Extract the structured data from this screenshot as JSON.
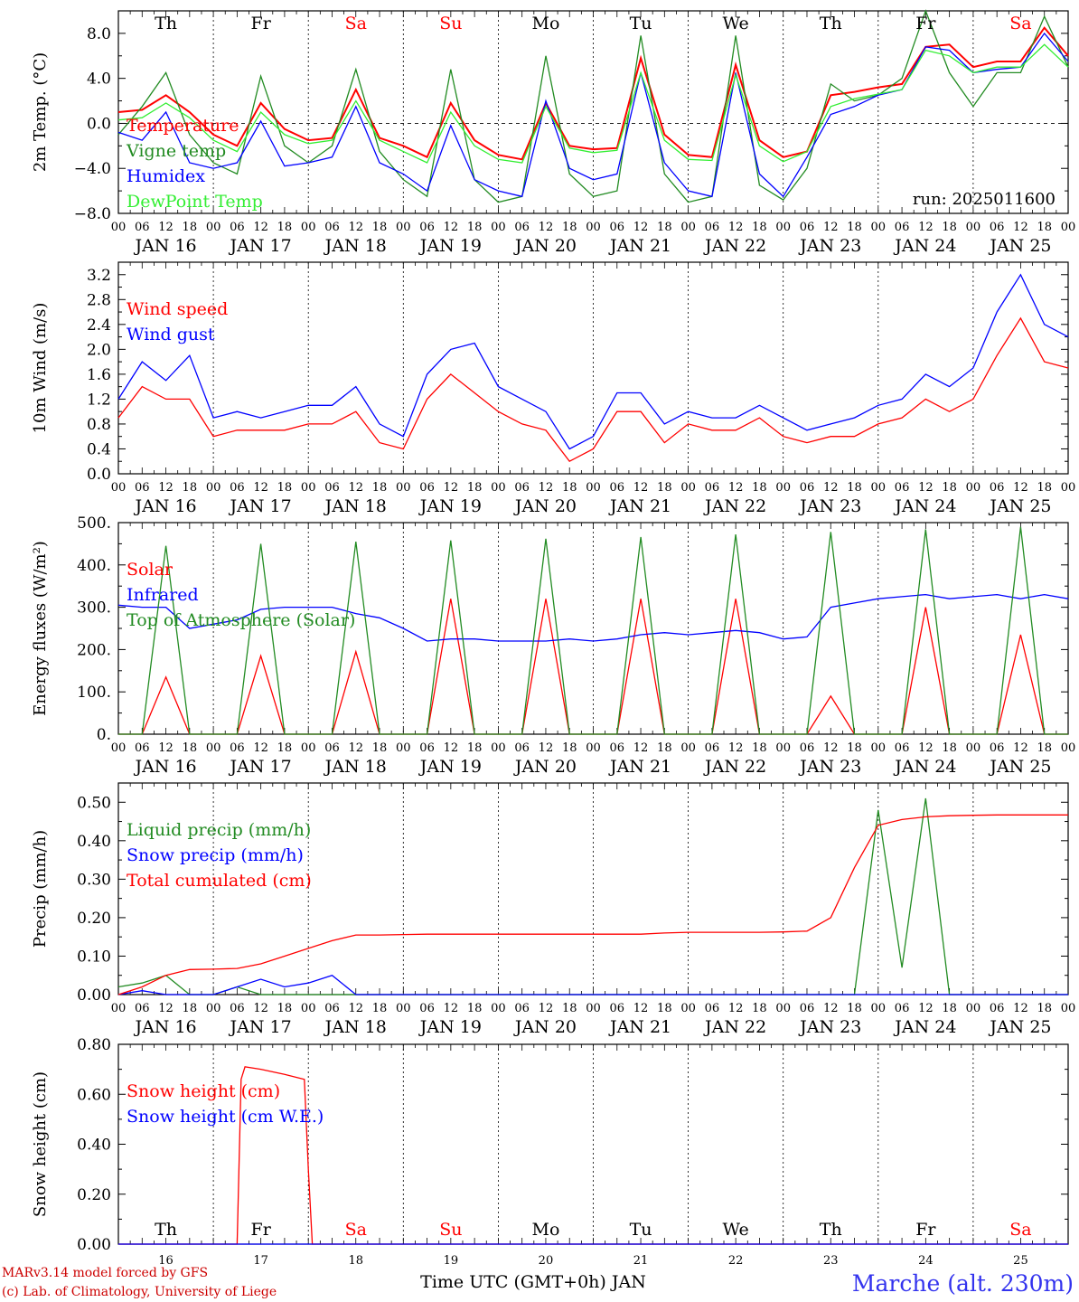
{
  "chart_data": [
    {
      "type": "line",
      "ylabel": "2m Temp. (°C)",
      "ylim": [
        -8,
        10
      ],
      "yticks": [
        -8,
        -4,
        0,
        4,
        8
      ],
      "yticklabels": [
        "−8.0",
        "−4.0",
        "0.0",
        "4.0",
        "8.0"
      ],
      "zero_line": true,
      "run_label": "run: 2025011600",
      "day_names": [
        "Th",
        "Fr",
        "Sa",
        "Su",
        "Mo",
        "Tu",
        "We",
        "Th",
        "Fr",
        "Sa"
      ],
      "weekend": [
        false,
        false,
        true,
        true,
        false,
        false,
        false,
        false,
        false,
        true
      ],
      "x_hours": [
        0,
        6,
        12,
        18,
        24,
        30,
        36,
        42,
        48,
        54,
        60,
        66,
        72,
        78,
        84,
        90,
        96,
        102,
        108,
        114,
        120,
        126,
        132,
        138,
        144,
        150,
        156,
        162,
        168,
        174,
        180,
        186,
        192,
        198,
        204,
        210,
        216,
        222,
        228,
        234,
        240
      ],
      "series": [
        {
          "name": "Temperature",
          "color": "#ff0000",
          "values": [
            1.0,
            1.2,
            2.5,
            1.0,
            -1.0,
            -2.0,
            1.8,
            -0.5,
            -1.5,
            -1.3,
            3.0,
            -1.3,
            -2.0,
            -3.0,
            1.8,
            -1.5,
            -2.8,
            -3.2,
            1.8,
            -2.0,
            -2.3,
            -2.2,
            5.8,
            -1.0,
            -2.8,
            -3.0,
            5.2,
            -1.5,
            -3.0,
            -2.5,
            2.5,
            2.8,
            3.2,
            3.5,
            6.8,
            7.0,
            5.0,
            5.5,
            5.5,
            8.5,
            6.0
          ]
        },
        {
          "name": "Vigne temp",
          "color": "#228b22",
          "values": [
            -1.0,
            1.5,
            4.5,
            -1.0,
            -3.5,
            -4.5,
            4.2,
            -2.0,
            -3.5,
            -2.0,
            4.8,
            -2.5,
            -5.0,
            -6.5,
            4.8,
            -5.0,
            -7.0,
            -6.5,
            6.0,
            -4.5,
            -6.5,
            -6.0,
            7.8,
            -4.5,
            -7.0,
            -6.5,
            7.8,
            -5.5,
            -6.8,
            -4.0,
            3.5,
            2.0,
            2.5,
            4.0,
            10.0,
            4.5,
            1.5,
            4.5,
            4.5,
            9.5,
            5.0
          ]
        },
        {
          "name": "Humidex",
          "color": "#0000ff",
          "values": [
            -0.8,
            -1.5,
            1.0,
            -3.5,
            -4.0,
            -3.5,
            0.2,
            -3.8,
            -3.5,
            -3.0,
            1.5,
            -3.5,
            -4.5,
            -6.0,
            -0.2,
            -5.0,
            -6.0,
            -6.5,
            2.0,
            -4.0,
            -5.0,
            -4.5,
            4.5,
            -3.5,
            -6.0,
            -6.5,
            4.5,
            -4.5,
            -6.5,
            -3.0,
            0.8,
            1.5,
            2.5,
            3.0,
            6.8,
            6.5,
            4.5,
            4.8,
            5.0,
            8.0,
            5.5
          ]
        },
        {
          "name": "DewPoint Temp",
          "color": "#33ee33",
          "values": [
            0.3,
            0.5,
            1.8,
            0.5,
            -1.5,
            -2.5,
            1.0,
            -1.0,
            -1.8,
            -1.5,
            2.0,
            -1.5,
            -2.5,
            -3.5,
            1.0,
            -2.0,
            -3.2,
            -3.5,
            1.5,
            -2.2,
            -2.6,
            -2.4,
            4.5,
            -1.5,
            -3.2,
            -3.3,
            4.3,
            -2.0,
            -3.4,
            -2.5,
            1.5,
            2.2,
            2.6,
            3.0,
            6.5,
            6.0,
            4.5,
            5.0,
            5.0,
            7.0,
            5.0
          ]
        }
      ]
    },
    {
      "type": "line",
      "ylabel": "10m Wind (m/s)",
      "ylim": [
        0,
        3.4
      ],
      "yticks": [
        0,
        0.4,
        0.8,
        1.2,
        1.6,
        2.0,
        2.4,
        2.8,
        3.2
      ],
      "yticklabels": [
        "0.0",
        "0.4",
        "0.8",
        "1.2",
        "1.6",
        "2.0",
        "2.4",
        "2.8",
        "3.2"
      ],
      "x_hours": [
        0,
        6,
        12,
        18,
        24,
        30,
        36,
        42,
        48,
        54,
        60,
        66,
        72,
        78,
        84,
        90,
        96,
        102,
        108,
        114,
        120,
        126,
        132,
        138,
        144,
        150,
        156,
        162,
        168,
        174,
        180,
        186,
        192,
        198,
        204,
        210,
        216,
        222,
        228,
        234,
        240
      ],
      "series": [
        {
          "name": "Wind speed",
          "color": "#ff0000",
          "values": [
            0.9,
            1.4,
            1.2,
            1.2,
            0.6,
            0.7,
            0.7,
            0.7,
            0.8,
            0.8,
            1.0,
            0.5,
            0.4,
            1.2,
            1.6,
            1.3,
            1.0,
            0.8,
            0.7,
            0.2,
            0.4,
            1.0,
            1.0,
            0.5,
            0.8,
            0.7,
            0.7,
            0.9,
            0.6,
            0.5,
            0.6,
            0.6,
            0.8,
            0.9,
            1.2,
            1.0,
            1.2,
            1.9,
            2.5,
            1.8,
            1.7
          ]
        },
        {
          "name": "Wind gust",
          "color": "#0000ff",
          "values": [
            1.2,
            1.8,
            1.5,
            1.9,
            0.9,
            1.0,
            0.9,
            1.0,
            1.1,
            1.1,
            1.4,
            0.8,
            0.6,
            1.6,
            2.0,
            2.1,
            1.4,
            1.2,
            1.0,
            0.4,
            0.6,
            1.3,
            1.3,
            0.8,
            1.0,
            0.9,
            0.9,
            1.1,
            0.9,
            0.7,
            0.8,
            0.9,
            1.1,
            1.2,
            1.6,
            1.4,
            1.7,
            2.6,
            3.2,
            2.4,
            2.2
          ]
        }
      ]
    },
    {
      "type": "line",
      "ylabel": "Energy fluxes (W/m²)",
      "ylim": [
        0,
        500
      ],
      "yticks": [
        0,
        100,
        200,
        300,
        400,
        500
      ],
      "yticklabels": [
        "0.",
        "100.",
        "200.",
        "300.",
        "400.",
        "500."
      ],
      "x_hours": [
        0,
        6,
        12,
        18,
        24,
        30,
        36,
        42,
        48,
        54,
        60,
        66,
        72,
        78,
        84,
        90,
        96,
        102,
        108,
        114,
        120,
        126,
        132,
        138,
        144,
        150,
        156,
        162,
        168,
        174,
        180,
        186,
        192,
        198,
        204,
        210,
        216,
        222,
        228,
        234,
        240
      ],
      "series": [
        {
          "name": "Solar",
          "color": "#ff0000",
          "values": [
            0,
            0,
            135,
            0,
            0,
            0,
            185,
            0,
            0,
            0,
            195,
            0,
            0,
            0,
            320,
            0,
            0,
            0,
            320,
            0,
            0,
            0,
            320,
            0,
            0,
            0,
            320,
            0,
            0,
            0,
            90,
            0,
            0,
            0,
            300,
            0,
            0,
            0,
            235,
            0,
            0
          ]
        },
        {
          "name": "Infrared",
          "color": "#0000ff",
          "values": [
            305,
            300,
            300,
            250,
            260,
            270,
            295,
            300,
            300,
            300,
            285,
            275,
            250,
            220,
            225,
            225,
            220,
            220,
            220,
            225,
            220,
            225,
            235,
            240,
            235,
            240,
            245,
            240,
            225,
            230,
            300,
            310,
            320,
            325,
            330,
            320,
            325,
            330,
            320,
            330,
            320
          ]
        },
        {
          "name": "Top of Atmosphere (Solar)",
          "color": "#228b22",
          "values": [
            0,
            0,
            445,
            0,
            0,
            0,
            450,
            0,
            0,
            0,
            455,
            0,
            0,
            0,
            458,
            0,
            0,
            0,
            462,
            0,
            0,
            0,
            466,
            0,
            0,
            0,
            472,
            0,
            0,
            0,
            478,
            0,
            0,
            0,
            484,
            0,
            0,
            0,
            490,
            0,
            0
          ]
        }
      ]
    },
    {
      "type": "line",
      "ylabel": "Precip (mm/h)",
      "ylim": [
        0,
        0.55
      ],
      "yticks": [
        0,
        0.1,
        0.2,
        0.3,
        0.4,
        0.5
      ],
      "yticklabels": [
        "0.00",
        "0.10",
        "0.20",
        "0.30",
        "0.40",
        "0.50"
      ],
      "x_hours": [
        0,
        6,
        12,
        18,
        24,
        30,
        36,
        42,
        48,
        54,
        60,
        66,
        72,
        78,
        84,
        90,
        96,
        102,
        108,
        114,
        120,
        126,
        132,
        138,
        144,
        150,
        156,
        162,
        168,
        174,
        180,
        186,
        192,
        198,
        204,
        210,
        216,
        222,
        228,
        234,
        240
      ],
      "series": [
        {
          "name": "Liquid precip (mm/h)",
          "color": "#228b22",
          "values": [
            0.02,
            0.03,
            0.05,
            0.0,
            0.0,
            0.02,
            0.0,
            0.0,
            0.0,
            0.0,
            0.0,
            0.0,
            0.0,
            0.0,
            0.0,
            0.0,
            0.0,
            0.0,
            0.0,
            0.0,
            0.0,
            0.0,
            0.0,
            0.0,
            0.0,
            0.0,
            0.0,
            0.0,
            0.0,
            0.0,
            0.0,
            0.0,
            0.48,
            0.07,
            0.51,
            0.0,
            0.0,
            0.0,
            0.0,
            0.0,
            0.0
          ]
        },
        {
          "name": "Snow precip (mm/h)",
          "color": "#0000ff",
          "values": [
            0.0,
            0.01,
            0.0,
            0.0,
            0.0,
            0.02,
            0.04,
            0.02,
            0.03,
            0.05,
            0.0,
            0.0,
            0.0,
            0.0,
            0.0,
            0.0,
            0.0,
            0.0,
            0.0,
            0.0,
            0.0,
            0.0,
            0.0,
            0.0,
            0.0,
            0.0,
            0.0,
            0.0,
            0.0,
            0.0,
            0.0,
            0.0,
            0.0,
            0.0,
            0.0,
            0.0,
            0.0,
            0.0,
            0.0,
            0.0,
            0.0
          ]
        },
        {
          "name": "Total cumulated (cm)",
          "color": "#ff0000",
          "values": [
            0.0,
            0.02,
            0.05,
            0.065,
            0.066,
            0.068,
            0.08,
            0.1,
            0.12,
            0.14,
            0.155,
            0.155,
            0.156,
            0.157,
            0.157,
            0.157,
            0.157,
            0.157,
            0.157,
            0.157,
            0.157,
            0.157,
            0.157,
            0.16,
            0.162,
            0.162,
            0.162,
            0.162,
            0.163,
            0.165,
            0.2,
            0.33,
            0.44,
            0.455,
            0.462,
            0.465,
            0.466,
            0.467,
            0.467,
            0.467,
            0.467
          ]
        }
      ]
    },
    {
      "type": "line",
      "ylabel": "Snow height (cm)",
      "ylim": [
        0,
        0.8
      ],
      "yticks": [
        0,
        0.2,
        0.4,
        0.6,
        0.8
      ],
      "yticklabels": [
        "0.00",
        "0.20",
        "0.40",
        "0.60",
        "0.80"
      ],
      "day_numbers": [
        "16",
        "17",
        "18",
        "19",
        "20",
        "21",
        "22",
        "23",
        "24",
        "25"
      ],
      "xlabel": "Time UTC (GMT+0h) JAN",
      "x_hours": [
        0,
        30,
        31,
        32,
        36,
        42,
        47,
        48,
        49,
        240
      ],
      "series": [
        {
          "name": "Snow height (cm)",
          "color": "#ff0000",
          "values": [
            0,
            0,
            0.66,
            0.71,
            0.7,
            0.68,
            0.66,
            0.3,
            0,
            0
          ]
        },
        {
          "name": "Snow height (cm W.E.)",
          "color": "#0000ff",
          "values": [
            0,
            0,
            0,
            0,
            0,
            0,
            0,
            0,
            0,
            0
          ]
        }
      ]
    }
  ],
  "shared": {
    "hour_ticks": [
      "00",
      "06",
      "12",
      "18"
    ],
    "date_labels": [
      "JAN 16",
      "JAN 17",
      "JAN 18",
      "JAN 19",
      "JAN 20",
      "JAN 21",
      "JAN 22",
      "JAN 23",
      "JAN 24",
      "JAN 25"
    ],
    "xlim_hours": [
      0,
      240
    ]
  },
  "footer": {
    "model": "MARv3.14 model forced by GFS",
    "lab": "(c) Lab. of Climatology, University of Liege",
    "station": "Marche (alt. 230m)"
  },
  "colors": {
    "weekend_day": "#ff0000",
    "normal_day": "#000000",
    "station": "#3333ee",
    "credit": "#cc0000"
  }
}
